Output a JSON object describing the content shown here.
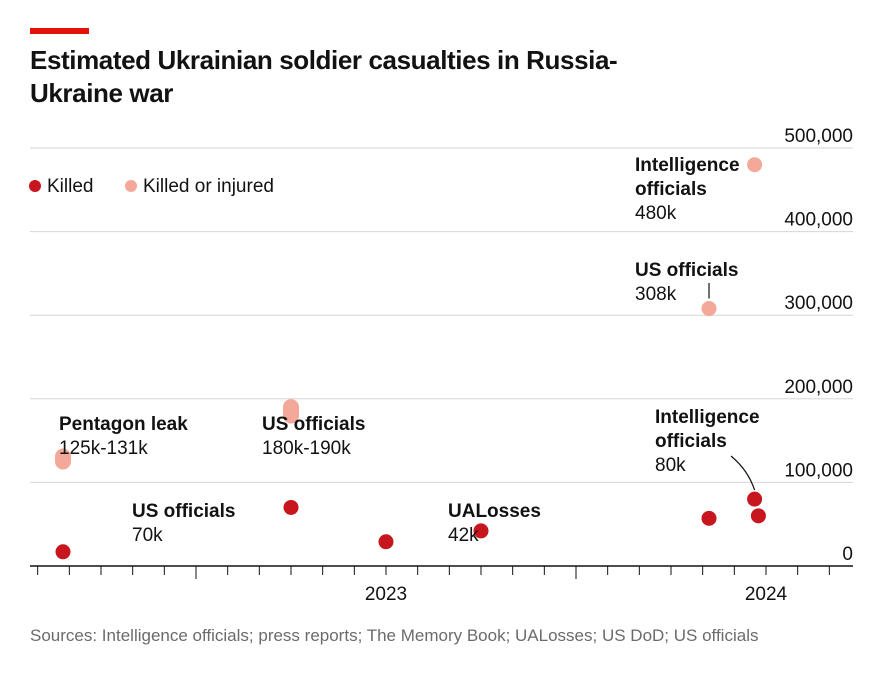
{
  "chart_data": {
    "type": "scatter",
    "title": "Estimated Ukrainian soldier casualties in Russia-Ukraine war",
    "source": "Sources: Intelligence officials; press reports; The Memory Book; UALosses; US DoD; US officials",
    "xlabel": "",
    "ylabel": "",
    "ylim": [
      0,
      500000
    ],
    "y_ticks": [
      {
        "value": 0,
        "label": "0"
      },
      {
        "value": 100000,
        "label": "100,000"
      },
      {
        "value": 200000,
        "label": "200,000"
      },
      {
        "value": 300000,
        "label": "300,000"
      },
      {
        "value": 400000,
        "label": "400,000"
      },
      {
        "value": 500000,
        "label": "500,000"
      }
    ],
    "x_year_labels": [
      {
        "year": 2023,
        "label": "2023"
      },
      {
        "year": 2024,
        "label": "2024"
      }
    ],
    "legend": [
      {
        "key": "killed",
        "label": "Killed",
        "color": "#c7161d"
      },
      {
        "key": "injured",
        "label": "Killed or injured",
        "color": "#f4a89a"
      }
    ],
    "series": [
      {
        "name": "Killed",
        "key": "killed",
        "color": "#c7161d",
        "points": [
          {
            "x": 2022.65,
            "y": 17000
          },
          {
            "x": 2023.25,
            "y": 70000
          },
          {
            "x": 2023.5,
            "y": 29000
          },
          {
            "x": 2023.75,
            "y": 42000
          },
          {
            "x": 2024.35,
            "y": 57000
          },
          {
            "x": 2024.47,
            "y": 80000
          },
          {
            "x": 2024.48,
            "y": 60000
          }
        ]
      },
      {
        "name": "Killed or injured",
        "key": "injured",
        "color": "#f4a89a",
        "points": [
          {
            "x": 2022.65,
            "y": 128000,
            "y_low": 125000,
            "y_high": 131000
          },
          {
            "x": 2023.25,
            "y": 185000,
            "y_low": 180000,
            "y_high": 190000
          },
          {
            "x": 2024.35,
            "y": 308000
          },
          {
            "x": 2024.47,
            "y": 480000
          }
        ]
      }
    ],
    "annotations": [
      {
        "title": "Pentagon leak",
        "value": "125k-131k"
      },
      {
        "title": "US officials",
        "value": "180k-190k"
      },
      {
        "title": "US officials",
        "value": "70k"
      },
      {
        "title": "UALosses",
        "value": "42k"
      },
      {
        "title": "US officials",
        "value": "308k"
      },
      {
        "title": "Intelligence officials",
        "value": "480k"
      },
      {
        "title": "Intelligence officials",
        "value": "80k"
      }
    ]
  }
}
